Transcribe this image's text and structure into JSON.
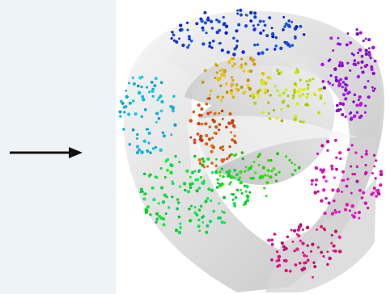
{
  "diagram": {
    "arrow": {
      "direction": "right",
      "color": "#111111"
    },
    "panel_background": "#eef3f8",
    "surface": {
      "kind": "swiss-roll",
      "shade": "#d4d4d4",
      "hue_order": [
        "cyan",
        "green",
        "red",
        "orange",
        "yellow",
        "blue",
        "purple",
        "magenta"
      ]
    }
  }
}
